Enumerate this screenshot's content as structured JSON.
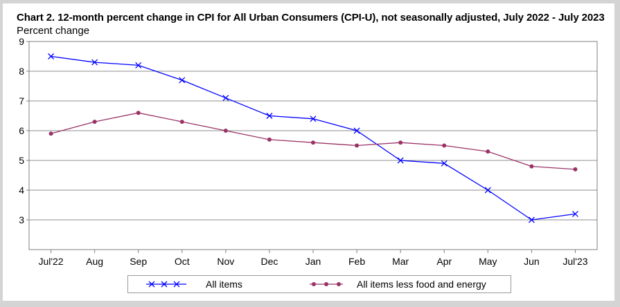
{
  "chart_data": {
    "type": "line",
    "title": "Chart 2. 12-month percent change in CPI for All Urban Consumers (CPI-U), not seasonally adjusted, July 2022 - July 2023",
    "ylabel": "Percent change",
    "xlabel": "",
    "categories": [
      "Jul'22",
      "Aug",
      "Sep",
      "Oct",
      "Nov",
      "Dec",
      "Jan",
      "Feb",
      "Mar",
      "Apr",
      "May",
      "Jun",
      "Jul'23"
    ],
    "yticks": [
      3,
      4,
      5,
      6,
      7,
      8,
      9
    ],
    "ylim": [
      2,
      9
    ],
    "grid": true,
    "legend_position": "bottom",
    "series": [
      {
        "name": "All items",
        "color": "#0000ff",
        "marker": "x",
        "values": [
          8.5,
          8.3,
          8.2,
          7.7,
          7.1,
          6.5,
          6.4,
          6.0,
          5.0,
          4.9,
          4.0,
          3.0,
          3.2
        ]
      },
      {
        "name": "All items less food and energy",
        "color": "#993366",
        "marker": "circle",
        "values": [
          5.9,
          6.3,
          6.6,
          6.3,
          6.0,
          5.7,
          5.6,
          5.5,
          5.6,
          5.5,
          5.3,
          4.8,
          4.7
        ]
      }
    ]
  }
}
